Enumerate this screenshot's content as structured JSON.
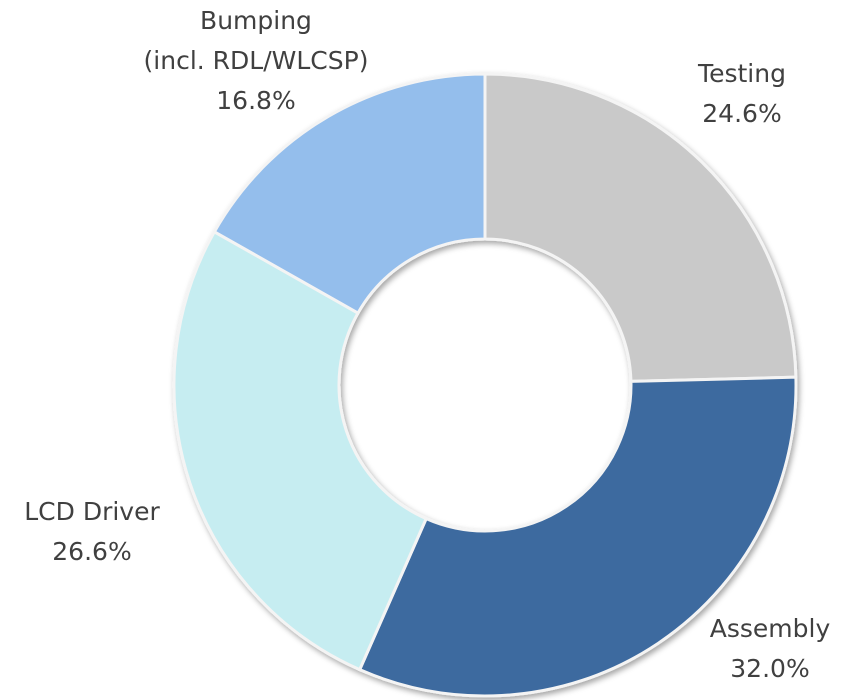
{
  "chart_data": {
    "type": "donut",
    "categories": [
      "Testing",
      "Assembly",
      "LCD Driver",
      "Bumping\n(incl. RDL/WLCSP)"
    ],
    "values": [
      24.6,
      32.0,
      26.6,
      16.8
    ],
    "value_labels": [
      "24.6%",
      "32.0%",
      "26.6%",
      "16.8%"
    ],
    "colors": [
      "#c9c9c9",
      "#3d6a9f",
      "#c6edf1",
      "#94beec"
    ]
  }
}
